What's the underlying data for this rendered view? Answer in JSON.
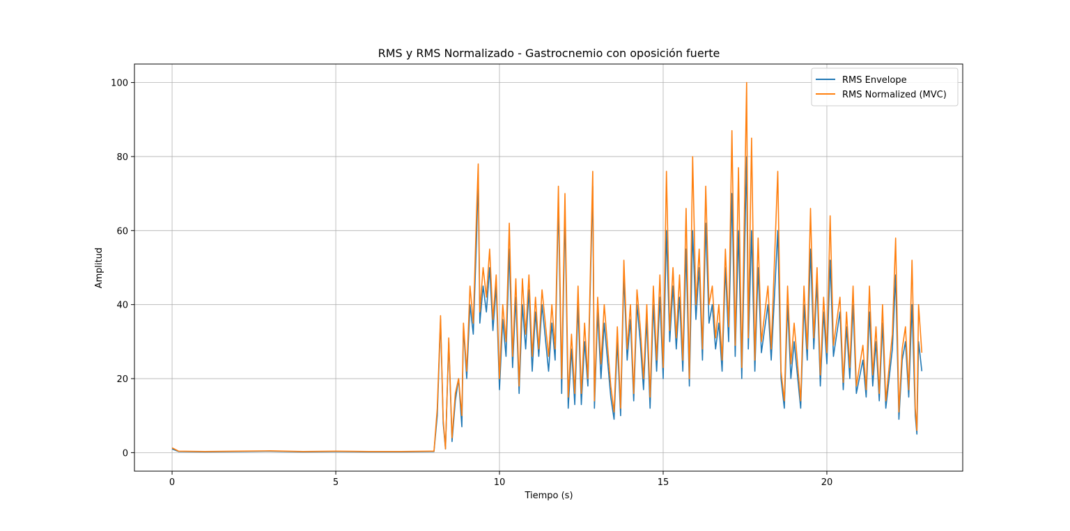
{
  "chart_data": {
    "type": "line",
    "title": "RMS y RMS Normalizado - Gastrocnemio con oposición fuerte",
    "xlabel": "Tiempo (s)",
    "ylabel": "Amplitud",
    "xlim": [
      -1.15,
      24.15
    ],
    "ylim": [
      -5,
      105
    ],
    "xticks": [
      0,
      5,
      10,
      15,
      20
    ],
    "yticks": [
      0,
      20,
      40,
      60,
      80,
      100
    ],
    "grid": true,
    "legend_position": "top-right",
    "series": [
      {
        "name": "RMS Envelope",
        "color": "#1f77b4",
        "points": [
          [
            0,
            1.0
          ],
          [
            0.2,
            0.3
          ],
          [
            1,
            0.2
          ],
          [
            2,
            0.3
          ],
          [
            3,
            0.4
          ],
          [
            4,
            0.2
          ],
          [
            5,
            0.3
          ],
          [
            6,
            0.2
          ],
          [
            7,
            0.2
          ],
          [
            7.9,
            0.3
          ],
          [
            8.0,
            0.3
          ],
          [
            8.1,
            10
          ],
          [
            8.2,
            36
          ],
          [
            8.28,
            8
          ],
          [
            8.35,
            1
          ],
          [
            8.45,
            30
          ],
          [
            8.55,
            3
          ],
          [
            8.65,
            14
          ],
          [
            8.75,
            20
          ],
          [
            8.85,
            7
          ],
          [
            8.9,
            34
          ],
          [
            9.0,
            20
          ],
          [
            9.1,
            40
          ],
          [
            9.2,
            32
          ],
          [
            9.3,
            58
          ],
          [
            9.35,
            75
          ],
          [
            9.4,
            35
          ],
          [
            9.5,
            45
          ],
          [
            9.6,
            38
          ],
          [
            9.7,
            50
          ],
          [
            9.8,
            33
          ],
          [
            9.9,
            45
          ],
          [
            10.0,
            17
          ],
          [
            10.1,
            36
          ],
          [
            10.2,
            26
          ],
          [
            10.3,
            55
          ],
          [
            10.4,
            23
          ],
          [
            10.5,
            42
          ],
          [
            10.6,
            16
          ],
          [
            10.7,
            40
          ],
          [
            10.8,
            28
          ],
          [
            10.9,
            44
          ],
          [
            11.0,
            22
          ],
          [
            11.1,
            38
          ],
          [
            11.2,
            26
          ],
          [
            11.3,
            40
          ],
          [
            11.5,
            22
          ],
          [
            11.6,
            35
          ],
          [
            11.7,
            25
          ],
          [
            11.8,
            68
          ],
          [
            11.9,
            16
          ],
          [
            12.0,
            65
          ],
          [
            12.1,
            12
          ],
          [
            12.2,
            28
          ],
          [
            12.3,
            13
          ],
          [
            12.4,
            40
          ],
          [
            12.5,
            13
          ],
          [
            12.6,
            30
          ],
          [
            12.7,
            18
          ],
          [
            12.85,
            72
          ],
          [
            12.9,
            12
          ],
          [
            13.0,
            38
          ],
          [
            13.1,
            20
          ],
          [
            13.2,
            35
          ],
          [
            13.4,
            15
          ],
          [
            13.5,
            9
          ],
          [
            13.6,
            30
          ],
          [
            13.7,
            10
          ],
          [
            13.8,
            48
          ],
          [
            13.9,
            25
          ],
          [
            14.0,
            36
          ],
          [
            14.1,
            14
          ],
          [
            14.2,
            40
          ],
          [
            14.3,
            30
          ],
          [
            14.4,
            17
          ],
          [
            14.5,
            36
          ],
          [
            14.6,
            12
          ],
          [
            14.7,
            40
          ],
          [
            14.8,
            22
          ],
          [
            14.9,
            42
          ],
          [
            15.0,
            20
          ],
          [
            15.1,
            60
          ],
          [
            15.2,
            30
          ],
          [
            15.3,
            45
          ],
          [
            15.4,
            28
          ],
          [
            15.5,
            42
          ],
          [
            15.6,
            22
          ],
          [
            15.7,
            55
          ],
          [
            15.8,
            18
          ],
          [
            15.9,
            60
          ],
          [
            16.0,
            36
          ],
          [
            16.1,
            50
          ],
          [
            16.2,
            25
          ],
          [
            16.3,
            62
          ],
          [
            16.4,
            35
          ],
          [
            16.5,
            40
          ],
          [
            16.6,
            28
          ],
          [
            16.7,
            35
          ],
          [
            16.8,
            22
          ],
          [
            16.9,
            50
          ],
          [
            17.0,
            30
          ],
          [
            17.1,
            70
          ],
          [
            17.2,
            26
          ],
          [
            17.3,
            60
          ],
          [
            17.4,
            20
          ],
          [
            17.55,
            80
          ],
          [
            17.6,
            28
          ],
          [
            17.7,
            60
          ],
          [
            17.8,
            22
          ],
          [
            17.9,
            50
          ],
          [
            18.0,
            27
          ],
          [
            18.2,
            40
          ],
          [
            18.3,
            25
          ],
          [
            18.5,
            60
          ],
          [
            18.6,
            20
          ],
          [
            18.7,
            12
          ],
          [
            18.8,
            40
          ],
          [
            18.9,
            20
          ],
          [
            19.0,
            30
          ],
          [
            19.2,
            12
          ],
          [
            19.3,
            40
          ],
          [
            19.4,
            25
          ],
          [
            19.5,
            55
          ],
          [
            19.6,
            28
          ],
          [
            19.7,
            46
          ],
          [
            19.8,
            18
          ],
          [
            19.9,
            38
          ],
          [
            20.0,
            24
          ],
          [
            20.1,
            52
          ],
          [
            20.2,
            26
          ],
          [
            20.4,
            38
          ],
          [
            20.5,
            17
          ],
          [
            20.6,
            34
          ],
          [
            20.7,
            20
          ],
          [
            20.8,
            40
          ],
          [
            20.9,
            16
          ],
          [
            21.1,
            25
          ],
          [
            21.2,
            15
          ],
          [
            21.3,
            38
          ],
          [
            21.4,
            18
          ],
          [
            21.5,
            30
          ],
          [
            21.6,
            14
          ],
          [
            21.7,
            35
          ],
          [
            21.8,
            12
          ],
          [
            22.0,
            28
          ],
          [
            22.1,
            48
          ],
          [
            22.2,
            9
          ],
          [
            22.3,
            25
          ],
          [
            22.4,
            30
          ],
          [
            22.5,
            15
          ],
          [
            22.6,
            40
          ],
          [
            22.7,
            10
          ],
          [
            22.75,
            5
          ],
          [
            22.8,
            30
          ],
          [
            22.9,
            22
          ]
        ]
      },
      {
        "name": "RMS Normalized (MVC)",
        "color": "#ff7f0e",
        "points": [
          [
            0,
            1.3
          ],
          [
            0.2,
            0.4
          ],
          [
            1,
            0.3
          ],
          [
            2,
            0.4
          ],
          [
            3,
            0.5
          ],
          [
            4,
            0.3
          ],
          [
            5,
            0.4
          ],
          [
            6,
            0.3
          ],
          [
            7,
            0.3
          ],
          [
            7.9,
            0.4
          ],
          [
            8.0,
            0.4
          ],
          [
            8.1,
            12
          ],
          [
            8.2,
            37
          ],
          [
            8.28,
            9
          ],
          [
            8.35,
            1
          ],
          [
            8.45,
            31
          ],
          [
            8.55,
            4
          ],
          [
            8.65,
            16
          ],
          [
            8.75,
            20
          ],
          [
            8.85,
            10
          ],
          [
            8.9,
            35
          ],
          [
            9.0,
            22
          ],
          [
            9.1,
            45
          ],
          [
            9.2,
            35
          ],
          [
            9.3,
            65
          ],
          [
            9.35,
            78
          ],
          [
            9.4,
            38
          ],
          [
            9.5,
            50
          ],
          [
            9.6,
            42
          ],
          [
            9.7,
            55
          ],
          [
            9.8,
            36
          ],
          [
            9.9,
            48
          ],
          [
            10.0,
            20
          ],
          [
            10.1,
            40
          ],
          [
            10.2,
            30
          ],
          [
            10.3,
            62
          ],
          [
            10.4,
            26
          ],
          [
            10.5,
            47
          ],
          [
            10.6,
            18
          ],
          [
            10.7,
            47
          ],
          [
            10.8,
            32
          ],
          [
            10.9,
            48
          ],
          [
            11.0,
            26
          ],
          [
            11.1,
            42
          ],
          [
            11.2,
            28
          ],
          [
            11.3,
            44
          ],
          [
            11.5,
            26
          ],
          [
            11.6,
            40
          ],
          [
            11.7,
            28
          ],
          [
            11.8,
            72
          ],
          [
            11.9,
            20
          ],
          [
            12.0,
            70
          ],
          [
            12.1,
            15
          ],
          [
            12.2,
            32
          ],
          [
            12.3,
            16
          ],
          [
            12.4,
            45
          ],
          [
            12.5,
            16
          ],
          [
            12.6,
            35
          ],
          [
            12.7,
            20
          ],
          [
            12.85,
            76
          ],
          [
            12.9,
            14
          ],
          [
            13.0,
            42
          ],
          [
            13.1,
            24
          ],
          [
            13.2,
            40
          ],
          [
            13.4,
            18
          ],
          [
            13.5,
            11
          ],
          [
            13.6,
            34
          ],
          [
            13.7,
            12
          ],
          [
            13.8,
            52
          ],
          [
            13.9,
            28
          ],
          [
            14.0,
            40
          ],
          [
            14.1,
            16
          ],
          [
            14.2,
            44
          ],
          [
            14.3,
            34
          ],
          [
            14.4,
            20
          ],
          [
            14.5,
            40
          ],
          [
            14.6,
            15
          ],
          [
            14.7,
            45
          ],
          [
            14.8,
            25
          ],
          [
            14.9,
            48
          ],
          [
            15.0,
            23
          ],
          [
            15.1,
            76
          ],
          [
            15.2,
            33
          ],
          [
            15.3,
            50
          ],
          [
            15.4,
            31
          ],
          [
            15.5,
            48
          ],
          [
            15.6,
            25
          ],
          [
            15.7,
            66
          ],
          [
            15.8,
            20
          ],
          [
            15.9,
            80
          ],
          [
            16.0,
            40
          ],
          [
            16.1,
            55
          ],
          [
            16.2,
            28
          ],
          [
            16.3,
            72
          ],
          [
            16.4,
            40
          ],
          [
            16.5,
            45
          ],
          [
            16.6,
            31
          ],
          [
            16.7,
            40
          ],
          [
            16.8,
            25
          ],
          [
            16.9,
            55
          ],
          [
            17.0,
            34
          ],
          [
            17.1,
            87
          ],
          [
            17.2,
            29
          ],
          [
            17.3,
            77
          ],
          [
            17.4,
            23
          ],
          [
            17.55,
            100
          ],
          [
            17.6,
            31
          ],
          [
            17.7,
            85
          ],
          [
            17.8,
            25
          ],
          [
            17.9,
            58
          ],
          [
            18.0,
            30
          ],
          [
            18.2,
            45
          ],
          [
            18.3,
            28
          ],
          [
            18.5,
            76
          ],
          [
            18.6,
            22
          ],
          [
            18.7,
            14
          ],
          [
            18.8,
            45
          ],
          [
            18.9,
            24
          ],
          [
            19.0,
            35
          ],
          [
            19.2,
            14
          ],
          [
            19.3,
            45
          ],
          [
            19.4,
            28
          ],
          [
            19.5,
            66
          ],
          [
            19.6,
            31
          ],
          [
            19.7,
            50
          ],
          [
            19.8,
            21
          ],
          [
            19.9,
            42
          ],
          [
            20.0,
            27
          ],
          [
            20.1,
            64
          ],
          [
            20.2,
            29
          ],
          [
            20.4,
            42
          ],
          [
            20.5,
            19
          ],
          [
            20.6,
            38
          ],
          [
            20.7,
            23
          ],
          [
            20.8,
            45
          ],
          [
            20.9,
            18
          ],
          [
            21.1,
            29
          ],
          [
            21.2,
            17
          ],
          [
            21.3,
            45
          ],
          [
            21.4,
            21
          ],
          [
            21.5,
            34
          ],
          [
            21.6,
            16
          ],
          [
            21.7,
            40
          ],
          [
            21.8,
            14
          ],
          [
            22.0,
            32
          ],
          [
            22.1,
            58
          ],
          [
            22.2,
            11
          ],
          [
            22.3,
            28
          ],
          [
            22.4,
            34
          ],
          [
            22.5,
            17
          ],
          [
            22.6,
            52
          ],
          [
            22.7,
            12
          ],
          [
            22.75,
            6
          ],
          [
            22.8,
            40
          ],
          [
            22.9,
            27
          ]
        ]
      }
    ]
  }
}
